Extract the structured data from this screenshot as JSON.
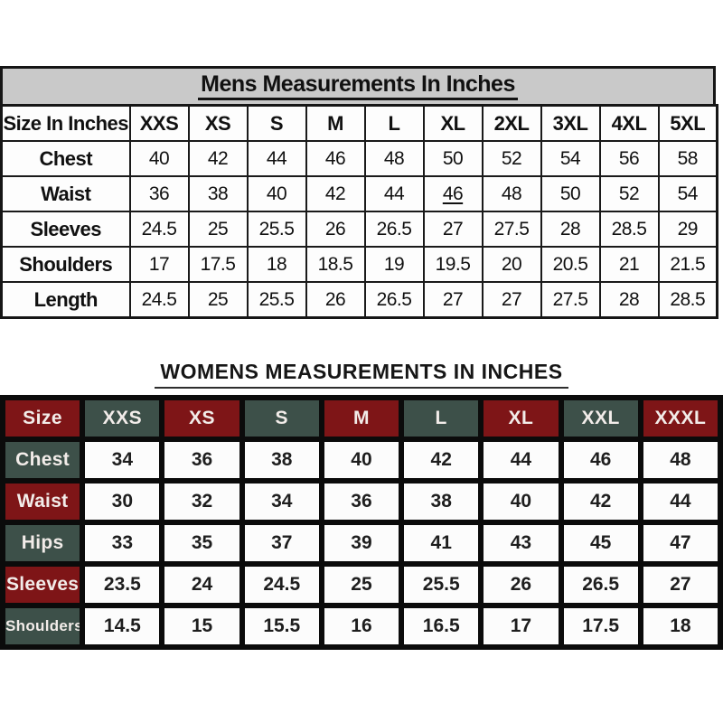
{
  "chart_data": [
    {
      "type": "table",
      "id": "mens",
      "title": "Mens Measurements In Inches",
      "columns": [
        "Size In Inches",
        "XXS",
        "XS",
        "S",
        "M",
        "L",
        "XL",
        "2XL",
        "3XL",
        "4XL",
        "5XL"
      ],
      "rows": [
        {
          "label": "Chest",
          "values": [
            "40",
            "42",
            "44",
            "46",
            "48",
            "50",
            "52",
            "54",
            "56",
            "58"
          ]
        },
        {
          "label": "Waist",
          "values": [
            "36",
            "38",
            "40",
            "42",
            "44",
            "46",
            "48",
            "50",
            "52",
            "54"
          ],
          "underline_value_index": 5
        },
        {
          "label": "Sleeves",
          "values": [
            "24.5",
            "25",
            "25.5",
            "26",
            "26.5",
            "27",
            "27.5",
            "28",
            "28.5",
            "29"
          ]
        },
        {
          "label": "Shoulders",
          "values": [
            "17",
            "17.5",
            "18",
            "18.5",
            "19",
            "19.5",
            "20",
            "20.5",
            "21",
            "21.5"
          ]
        },
        {
          "label": "Length",
          "values": [
            "24.5",
            "25",
            "25.5",
            "26",
            "26.5",
            "27",
            "27",
            "27.5",
            "28",
            "28.5"
          ]
        }
      ],
      "colors": {
        "title_band": "#c9c9c9",
        "border": "#161616",
        "cell_bg": "#fdfdfd",
        "text": "#111111"
      }
    },
    {
      "type": "table",
      "id": "womens",
      "title": "WOMENS MEASUREMENTS IN INCHES",
      "columns": [
        "Size",
        "XXS",
        "XS",
        "S",
        "M",
        "L",
        "XL",
        "XXL",
        "XXXL"
      ],
      "header_colors": [
        "#7e1517",
        "#3d5049",
        "#7e1517",
        "#3d5049",
        "#7e1517",
        "#3d5049",
        "#7e1517",
        "#3d5049",
        "#7e1517"
      ],
      "rows": [
        {
          "label": "Chest",
          "label_color": "#3d5049",
          "values": [
            "34",
            "36",
            "38",
            "40",
            "42",
            "44",
            "46",
            "48"
          ]
        },
        {
          "label": "Waist",
          "label_color": "#7e1517",
          "values": [
            "30",
            "32",
            "34",
            "36",
            "38",
            "40",
            "42",
            "44"
          ]
        },
        {
          "label": "Hips",
          "label_color": "#3d5049",
          "values": [
            "33",
            "35",
            "37",
            "39",
            "41",
            "43",
            "45",
            "47"
          ]
        },
        {
          "label": "Sleeves",
          "label_color": "#7e1517",
          "values": [
            "23.5",
            "24",
            "24.5",
            "25",
            "25.5",
            "26",
            "26.5",
            "27"
          ]
        },
        {
          "label": "Shoulders",
          "label_color": "#3d5049",
          "values": [
            "14.5",
            "15",
            "15.5",
            "16",
            "16.5",
            "17",
            "17.5",
            "18"
          ]
        }
      ],
      "colors": {
        "grid": "#0b0b0b",
        "cell_bg": "#fcfcfc",
        "header_text": "#f2ece9",
        "value_text": "#1e1e1e"
      }
    }
  ]
}
